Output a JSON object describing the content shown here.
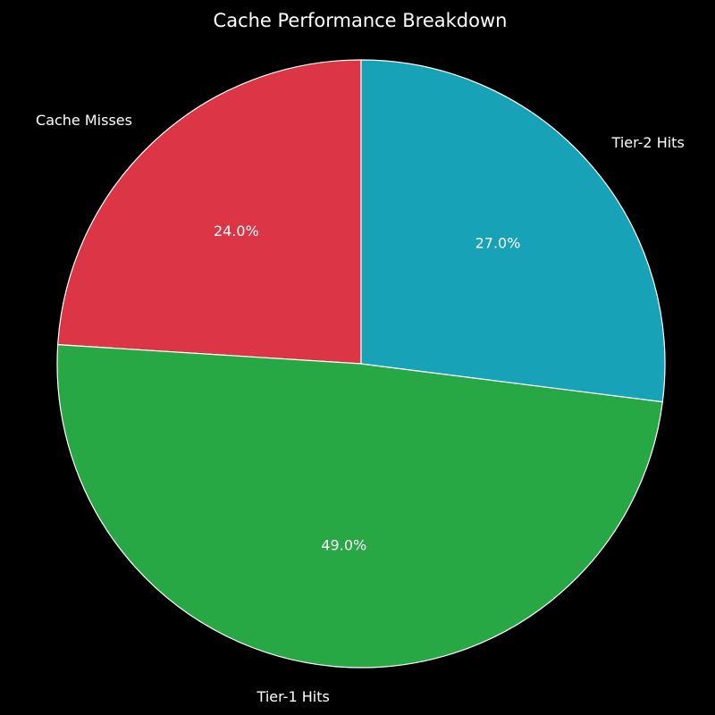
{
  "chart_data": {
    "type": "pie",
    "title": "Cache Performance Breakdown",
    "start_angle_deg": 90,
    "direction": "counterclockwise",
    "slices": [
      {
        "label": "Cache Misses",
        "value": 24.0,
        "pct_label": "24.0%",
        "color": "#dc3545"
      },
      {
        "label": "Tier-1 Hits",
        "value": 49.0,
        "pct_label": "49.0%",
        "color": "#28a745"
      },
      {
        "label": "Tier-2 Hits",
        "value": 27.0,
        "pct_label": "27.0%",
        "color": "#17a2b8"
      }
    ],
    "edge_color": "#ffffff",
    "background": "#000000"
  }
}
